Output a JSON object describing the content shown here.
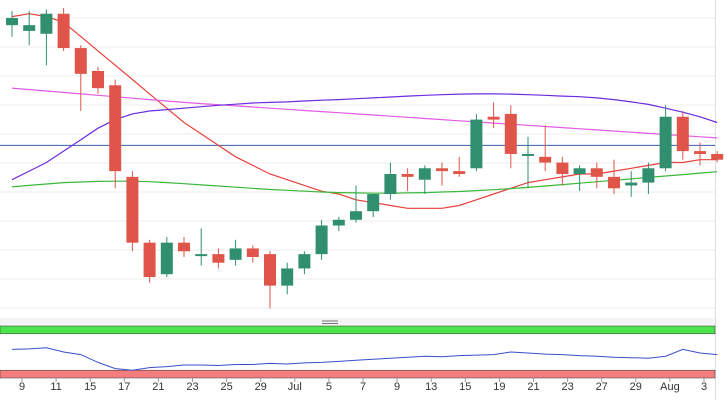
{
  "chart_data": [
    {
      "type": "candlestick",
      "title": "",
      "ylim": [
        0,
        100
      ],
      "x_tick_labels": [
        "9",
        "11",
        "15",
        "17",
        "21",
        "23",
        "25",
        "29",
        "Jul",
        "5",
        "7",
        "9",
        "13",
        "15",
        "19",
        "21",
        "23",
        "27",
        "29",
        "Aug",
        "3"
      ],
      "candles": [
        {
          "x": 0,
          "open": 94.0,
          "high": 99.0,
          "low": 90.0,
          "close": 96.5
        },
        {
          "x": 1,
          "open": 92.0,
          "high": 99.0,
          "low": 87.0,
          "close": 94.0
        },
        {
          "x": 2,
          "open": 91.0,
          "high": 99.5,
          "low": 80.0,
          "close": 98.0
        },
        {
          "x": 3,
          "open": 98.0,
          "high": 100.0,
          "low": 85.0,
          "close": 86.0
        },
        {
          "x": 4,
          "open": 86.0,
          "high": 87.0,
          "low": 64.0,
          "close": 77.0
        },
        {
          "x": 5,
          "open": 78.0,
          "high": 79.5,
          "low": 70.0,
          "close": 72.0
        },
        {
          "x": 6,
          "open": 73.0,
          "high": 75.0,
          "low": 37.0,
          "close": 43.0
        },
        {
          "x": 7,
          "open": 41.0,
          "high": 43.0,
          "low": 15.0,
          "close": 18.0
        },
        {
          "x": 8,
          "open": 18.0,
          "high": 19.0,
          "low": 4.0,
          "close": 6.0
        },
        {
          "x": 9,
          "open": 7.0,
          "high": 20.0,
          "low": 6.0,
          "close": 18.0
        },
        {
          "x": 10,
          "open": 18.0,
          "high": 20.0,
          "low": 13.0,
          "close": 15.0
        },
        {
          "x": 11,
          "open": 14.0,
          "high": 23.0,
          "low": 10.0,
          "close": 14.0
        },
        {
          "x": 12,
          "open": 14.0,
          "high": 16.0,
          "low": 9.0,
          "close": 11.0
        },
        {
          "x": 13,
          "open": 12.0,
          "high": 19.0,
          "low": 10.0,
          "close": 16.0
        },
        {
          "x": 14,
          "open": 16.0,
          "high": 17.0,
          "low": 11.0,
          "close": 13.0
        },
        {
          "x": 15,
          "open": 14.0,
          "high": 15.0,
          "low": -5.0,
          "close": 3.0
        },
        {
          "x": 16,
          "open": 3.0,
          "high": 11.0,
          "low": 0.0,
          "close": 9.0
        },
        {
          "x": 17,
          "open": 9.0,
          "high": 15.0,
          "low": 7.0,
          "close": 14.0
        },
        {
          "x": 18,
          "open": 14.0,
          "high": 26.0,
          "low": 12.0,
          "close": 24.0
        },
        {
          "x": 19,
          "open": 24.0,
          "high": 27.0,
          "low": 22.0,
          "close": 26.0
        },
        {
          "x": 20,
          "open": 26.0,
          "high": 38.0,
          "low": 25.0,
          "close": 29.0
        },
        {
          "x": 21,
          "open": 29.0,
          "high": 35.0,
          "low": 27.0,
          "close": 35.0
        },
        {
          "x": 22,
          "open": 35.0,
          "high": 46.0,
          "low": 33.0,
          "close": 42.0
        },
        {
          "x": 23,
          "open": 42.0,
          "high": 44.0,
          "low": 36.0,
          "close": 41.0
        },
        {
          "x": 24,
          "open": 40.0,
          "high": 45.0,
          "low": 35.0,
          "close": 44.0
        },
        {
          "x": 25,
          "open": 44.0,
          "high": 46.0,
          "low": 38.0,
          "close": 43.0
        },
        {
          "x": 26,
          "open": 43.0,
          "high": 48.0,
          "low": 41.0,
          "close": 42.0
        },
        {
          "x": 27,
          "open": 44.0,
          "high": 63.0,
          "low": 43.0,
          "close": 61.0
        },
        {
          "x": 28,
          "open": 62.0,
          "high": 67.0,
          "low": 58.0,
          "close": 61.0
        },
        {
          "x": 29,
          "open": 63.0,
          "high": 66.0,
          "low": 44.0,
          "close": 49.0
        },
        {
          "x": 30,
          "open": 49.0,
          "high": 55.0,
          "low": 37.0,
          "close": 49.0
        },
        {
          "x": 31,
          "open": 48.0,
          "high": 59.0,
          "low": 43.0,
          "close": 46.0
        },
        {
          "x": 32,
          "open": 46.0,
          "high": 48.0,
          "low": 38.0,
          "close": 42.0
        },
        {
          "x": 33,
          "open": 42.0,
          "high": 45.0,
          "low": 36.0,
          "close": 44.0
        },
        {
          "x": 34,
          "open": 44.0,
          "high": 46.0,
          "low": 37.0,
          "close": 41.0
        },
        {
          "x": 35,
          "open": 41.0,
          "high": 47.0,
          "low": 35.0,
          "close": 37.0
        },
        {
          "x": 36,
          "open": 38.0,
          "high": 43.0,
          "low": 34.0,
          "close": 39.0
        },
        {
          "x": 37,
          "open": 39.0,
          "high": 46.0,
          "low": 35.0,
          "close": 44.0
        },
        {
          "x": 38,
          "open": 44.0,
          "high": 66.0,
          "low": 43.0,
          "close": 62.0
        },
        {
          "x": 39,
          "open": 62.0,
          "high": 64.0,
          "low": 47.0,
          "close": 50.0
        },
        {
          "x": 40,
          "open": 50.0,
          "high": 53.0,
          "low": 45.0,
          "close": 49.0
        },
        {
          "x": 41,
          "open": 49.0,
          "high": 50.0,
          "low": 46.0,
          "close": 47.0
        }
      ],
      "lines": [
        {
          "color": "#e8403a",
          "values": [
            97,
            98,
            97,
            95,
            90,
            85,
            80,
            75,
            70,
            65,
            60,
            56,
            52,
            48,
            45,
            42,
            40,
            38,
            36,
            35,
            33,
            32,
            31,
            30,
            30,
            30,
            31,
            33,
            35,
            37,
            39,
            40,
            41,
            42,
            42,
            43,
            44,
            45,
            46,
            46,
            47,
            47
          ]
        },
        {
          "color": "#e25ce2",
          "values": [
            72,
            71.5,
            71,
            70.5,
            70,
            69.5,
            69,
            68.5,
            68,
            67.5,
            67,
            66.6,
            66.2,
            65.8,
            65.4,
            65,
            64.6,
            64.2,
            63.8,
            63.4,
            63,
            62.6,
            62.2,
            61.8,
            61.4,
            61,
            60.6,
            60.2,
            59.8,
            59.4,
            59,
            58.6,
            58.2,
            57.8,
            57.4,
            57,
            56.6,
            56.2,
            55.8,
            55.4,
            55,
            54.6
          ]
        },
        {
          "color": "#6a2de0",
          "values": [
            40,
            43,
            46,
            50,
            54,
            58,
            61,
            63,
            64,
            64.5,
            65,
            65.5,
            66,
            66.4,
            66.8,
            67,
            67.2,
            67.5,
            67.8,
            68,
            68.3,
            68.6,
            68.9,
            69.2,
            69.5,
            69.7,
            69.9,
            70,
            70,
            69.9,
            69.7,
            69.5,
            69.2,
            69,
            68.6,
            68,
            67.2,
            66.3,
            65,
            63.6,
            62,
            60
          ]
        },
        {
          "color": "#3ab83a",
          "values": [
            37.5,
            38,
            38.5,
            39,
            39.2,
            39.4,
            39.5,
            39.5,
            39.3,
            39,
            38.6,
            38.2,
            37.8,
            37.4,
            37,
            36.6,
            36.3,
            36,
            35.7,
            35.5,
            35.4,
            35.3,
            35.3,
            35.4,
            35.5,
            35.7,
            35.9,
            36.2,
            36.5,
            36.9,
            37.3,
            37.8,
            38.3,
            38.8,
            39.3,
            39.8,
            40.3,
            40.8,
            41.3,
            41.8,
            42.3,
            42.8
          ]
        }
      ],
      "hline": {
        "value": 52,
        "color": "#3b5ea8"
      }
    },
    {
      "type": "line",
      "title": "",
      "ylim": [
        0,
        100
      ],
      "series": [
        {
          "color": "#3a4ec9",
          "values": [
            55,
            56,
            58,
            50,
            45,
            30,
            18,
            15,
            20,
            22,
            25,
            25,
            24,
            26,
            26,
            28,
            27,
            29,
            30,
            32,
            34,
            36,
            38,
            40,
            42,
            41,
            43,
            44,
            45,
            50,
            48,
            46,
            45,
            43,
            42,
            40,
            39,
            38,
            42,
            55,
            48,
            45
          ]
        }
      ],
      "bands": [
        {
          "from": 100,
          "to": 85,
          "color": "#4de34d"
        },
        {
          "from": 15,
          "to": 0,
          "color": "#f47e7e"
        }
      ]
    }
  ]
}
